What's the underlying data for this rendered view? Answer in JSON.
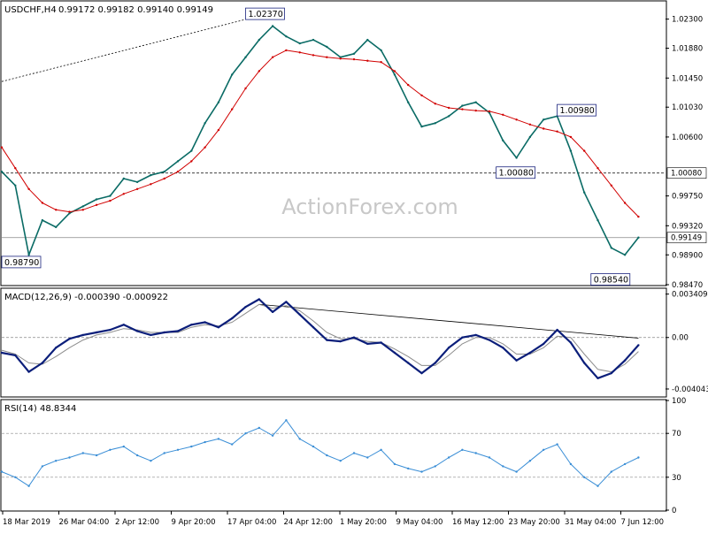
{
  "colors": {
    "candles": "#0a6b65",
    "ma": "#d10000",
    "macd": "#0b1e7a",
    "signal": "#8c8c8c",
    "rsi": "#3a8ed6",
    "grid": "#888888",
    "watermark": "#c8c8c8"
  },
  "watermark": "ActionForex.com",
  "x_axis": {
    "labels": [
      "18 Mar 2019",
      "26 Mar 04:00",
      "2 Apr 12:00",
      "9 Apr 20:00",
      "17 Apr 04:00",
      "24 Apr 12:00",
      "1 May 20:00",
      "9 May 04:00",
      "16 May 12:00",
      "23 May 20:00",
      "31 May 04:00",
      "7 Jun 12:00"
    ]
  },
  "chart_data": [
    {
      "type": "line",
      "title": "USDCHF,H4",
      "ohlc_header": "0.99172 0.99182 0.99140 0.99149",
      "ylim": [
        0.9847,
        1.0255
      ],
      "y_ticks": [
        "1.02300",
        "1.01880",
        "1.01450",
        "1.01030",
        "1.00600",
        "0.99750",
        "0.99320",
        "0.98900",
        "0.98470"
      ],
      "current_price": "0.99149",
      "current_price_value": 0.99149,
      "horizontal_line": {
        "value": 1.0008,
        "label": "1.00080"
      },
      "trendline": {
        "x": [
          0,
          39
        ],
        "y": [
          1.014,
          1.0237
        ]
      },
      "annotations": [
        {
          "text": "1.02370",
          "x": 39,
          "y": 1.0237
        },
        {
          "text": "1.00980",
          "x": 85,
          "y": 1.0098
        },
        {
          "text": "1.00080",
          "x": 76,
          "y": 1.0008
        },
        {
          "text": "0.98540",
          "x": 90,
          "y": 0.9854
        },
        {
          "text": "0.98790",
          "x": 3,
          "y": 0.9879
        }
      ],
      "x": [
        0,
        2,
        4,
        6,
        8,
        10,
        12,
        14,
        16,
        18,
        20,
        22,
        24,
        26,
        28,
        30,
        32,
        34,
        36,
        38,
        40,
        42,
        44,
        46,
        48,
        50,
        52,
        54,
        56,
        58,
        60,
        62,
        64,
        66,
        68,
        70,
        72,
        74,
        76,
        78,
        80,
        82,
        84,
        86,
        88,
        90,
        92,
        94
      ],
      "series": [
        {
          "values": [
            1.001,
            0.999,
            0.989,
            0.994,
            0.993,
            0.995,
            0.996,
            0.997,
            0.9975,
            1.0,
            0.9995,
            1.0005,
            1.001,
            1.0025,
            1.004,
            1.008,
            1.011,
            1.015,
            1.0175,
            1.02,
            1.022,
            1.0205,
            1.0195,
            1.02,
            1.019,
            1.0175,
            1.018,
            1.02,
            1.0185,
            1.015,
            1.011,
            1.0075,
            1.008,
            1.009,
            1.0105,
            1.011,
            1.0095,
            1.0055,
            1.003,
            1.006,
            1.0085,
            1.009,
            1.004,
            0.998,
            0.994,
            0.99,
            0.989,
            0.9915
          ]
        },
        {
          "values": [
            1.0045,
            1.0015,
            0.9985,
            0.9965,
            0.9955,
            0.9952,
            0.9955,
            0.9962,
            0.9968,
            0.9978,
            0.9985,
            0.9992,
            1.0,
            1.001,
            1.0025,
            1.0045,
            1.007,
            1.01,
            1.013,
            1.0155,
            1.0175,
            1.0185,
            1.0182,
            1.0178,
            1.0175,
            1.0173,
            1.0172,
            1.017,
            1.0168,
            1.0155,
            1.0135,
            1.012,
            1.0108,
            1.0102,
            1.01,
            1.0098,
            1.0097,
            1.0092,
            1.0085,
            1.0078,
            1.0072,
            1.0068,
            1.006,
            1.004,
            1.0015,
            0.999,
            0.9965,
            0.9945
          ]
        }
      ]
    },
    {
      "type": "line",
      "title": "MACD(12,26,9) -0.000390 -0.000922",
      "ylim": [
        -0.0046,
        0.0038
      ],
      "y_ticks": [
        "0.003409",
        "0.00",
        "-0.004043"
      ],
      "zero_label": "0.00",
      "trendline": {
        "x": [
          38,
          94
        ],
        "y": [
          0.0026,
          -5e-05
        ]
      },
      "x": [
        0,
        2,
        4,
        6,
        8,
        10,
        12,
        14,
        16,
        18,
        20,
        22,
        24,
        26,
        28,
        30,
        32,
        34,
        36,
        38,
        40,
        42,
        44,
        46,
        48,
        50,
        52,
        54,
        56,
        58,
        60,
        62,
        64,
        66,
        68,
        70,
        72,
        74,
        76,
        78,
        80,
        82,
        84,
        86,
        88,
        90,
        92,
        94
      ],
      "series": [
        {
          "values": [
            -0.0012,
            -0.0014,
            -0.0027,
            -0.002,
            -0.0008,
            -0.0001,
            0.0002,
            0.0004,
            0.0006,
            0.001,
            0.0005,
            0.0002,
            0.0004,
            0.0005,
            0.001,
            0.0012,
            0.0008,
            0.0015,
            0.0024,
            0.003,
            0.002,
            0.0028,
            0.0018,
            0.0008,
            -0.0002,
            -0.0003,
            0.0,
            -0.0005,
            -0.0004,
            -0.0012,
            -0.002,
            -0.0028,
            -0.002,
            -0.0008,
            0.0,
            0.0002,
            -0.0002,
            -0.0008,
            -0.0018,
            -0.0012,
            -0.0005,
            0.0006,
            -0.0004,
            -0.002,
            -0.0032,
            -0.0028,
            -0.0018,
            -0.0006
          ]
        },
        {
          "values": [
            -0.001,
            -0.0013,
            -0.002,
            -0.0021,
            -0.0015,
            -0.0008,
            -0.0002,
            0.0002,
            0.0004,
            0.0007,
            0.0006,
            0.0004,
            0.0004,
            0.0004,
            0.0008,
            0.001,
            0.0009,
            0.0012,
            0.0019,
            0.0026,
            0.0023,
            0.0025,
            0.0021,
            0.0013,
            0.0004,
            -0.0001,
            -0.0001,
            -0.0003,
            -0.0004,
            -0.0009,
            -0.0015,
            -0.0022,
            -0.0022,
            -0.0014,
            -0.0005,
            0.0,
            0.0,
            -0.0005,
            -0.0013,
            -0.0013,
            -0.0008,
            0.0001,
            0.0,
            -0.0013,
            -0.0025,
            -0.0027,
            -0.0021,
            -0.0011
          ]
        }
      ]
    },
    {
      "type": "line",
      "title": "RSI(14) 48.8344",
      "ylim": [
        0,
        100
      ],
      "y_ticks": [
        "100",
        "70",
        "30",
        "0"
      ],
      "reference_levels": [
        70,
        30
      ],
      "x": [
        0,
        2,
        4,
        6,
        8,
        10,
        12,
        14,
        16,
        18,
        20,
        22,
        24,
        26,
        28,
        30,
        32,
        34,
        36,
        38,
        40,
        42,
        44,
        46,
        48,
        50,
        52,
        54,
        56,
        58,
        60,
        62,
        64,
        66,
        68,
        70,
        72,
        74,
        76,
        78,
        80,
        82,
        84,
        86,
        88,
        90,
        92,
        94
      ],
      "series": [
        {
          "values": [
            35,
            30,
            22,
            40,
            45,
            48,
            52,
            50,
            55,
            58,
            50,
            45,
            52,
            55,
            58,
            62,
            65,
            60,
            70,
            75,
            68,
            82,
            65,
            58,
            50,
            45,
            52,
            48,
            55,
            42,
            38,
            35,
            40,
            48,
            55,
            52,
            48,
            40,
            35,
            45,
            55,
            60,
            42,
            30,
            22,
            35,
            42,
            48
          ]
        }
      ]
    }
  ]
}
